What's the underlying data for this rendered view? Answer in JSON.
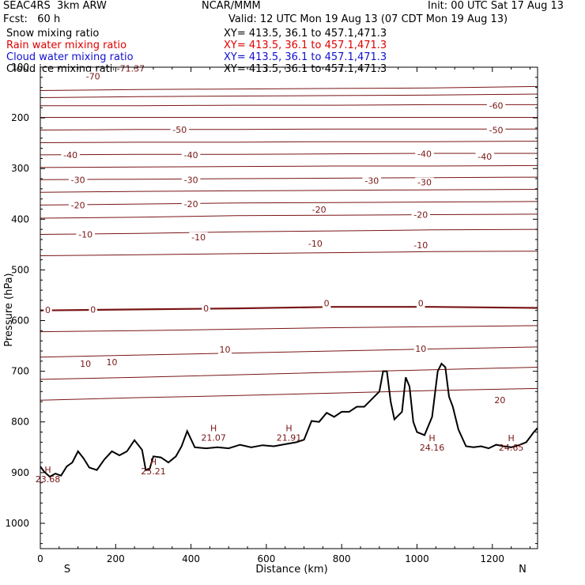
{
  "header": {
    "line1_left": "SEAC4RS  3km ARW",
    "line1_center": "NCAR/MMM",
    "line1_right": "Init: 00 UTC Sat 17 Aug 13",
    "line2_left": "Fcst:   60 h",
    "line2_right": "Valid: 12 UTC Mon 19 Aug 13 (07 CDT Mon 19 Aug 13)",
    "fields": [
      {
        "name": "Snow mixing ratio",
        "xy": "XY= 413.5, 36.1 to 457.1,471.3",
        "color": "#000000"
      },
      {
        "name": "Rain water mixing ratio",
        "xy": "XY= 413.5, 36.1 to 457.1,471.3",
        "color": "#e00000"
      },
      {
        "name": "Cloud water mixing ratio",
        "xy": "XY= 413.5, 36.1 to 457.1,471.3",
        "color": "#1010d0"
      },
      {
        "name": "Cloud ice mixing ratio",
        "xy": "XY= 413.5, 36.1 to 457.1,471.3",
        "color": "#000000"
      }
    ]
  },
  "chart_data": {
    "type": "line",
    "xlabel": "Distance (km)",
    "ylabel": "Pressure (hPa)",
    "xlim": [
      0,
      1320
    ],
    "ylim": [
      1050,
      100
    ],
    "xticks": [
      0,
      200,
      400,
      600,
      800,
      1000,
      1200
    ],
    "yticks": [
      100,
      200,
      300,
      400,
      500,
      600,
      700,
      800,
      900,
      1000
    ],
    "x_end_labels": {
      "left": "S",
      "right": "N"
    },
    "contour_color": "#7a1515",
    "contour_interval_c": 5,
    "isotherms": [
      {
        "t": -70,
        "p": [
          146,
          144,
          143,
          142,
          141,
          138
        ]
      },
      {
        "t": -65,
        "p": [
          160,
          158,
          157,
          156,
          155,
          153
        ]
      },
      {
        "t": -60,
        "p": [
          176,
          176,
          175,
          175,
          174,
          174
        ]
      },
      {
        "t": -55,
        "p": [
          199,
          199,
          199,
          199,
          199,
          199
        ]
      },
      {
        "t": -50,
        "p": [
          224,
          223,
          223,
          222,
          222,
          222
        ]
      },
      {
        "t": -45,
        "p": [
          249,
          248,
          248,
          247,
          247,
          246
        ]
      },
      {
        "t": -40,
        "p": [
          273,
          272,
          272,
          271,
          270,
          270
        ]
      },
      {
        "t": -35,
        "p": [
          298,
          297,
          296,
          295,
          295,
          294
        ]
      },
      {
        "t": -30,
        "p": [
          322,
          321,
          320,
          319,
          318,
          317
        ]
      },
      {
        "t": -25,
        "p": [
          347,
          345,
          344,
          343,
          342,
          341
        ]
      },
      {
        "t": -20,
        "p": [
          372,
          370,
          368,
          367,
          366,
          365
        ]
      },
      {
        "t": -15,
        "p": [
          398,
          396,
          393,
          392,
          391,
          390
        ]
      },
      {
        "t": -10,
        "p": [
          430,
          428,
          425,
          423,
          421,
          420
        ]
      },
      {
        "t": -5,
        "p": [
          472,
          470,
          468,
          466,
          464,
          463
        ]
      },
      {
        "t": 0,
        "p": [
          580,
          578,
          576,
          573,
          573,
          575
        ]
      },
      {
        "t": 5,
        "p": [
          622,
          620,
          617,
          614,
          612,
          610
        ]
      },
      {
        "t": 10,
        "p": [
          672,
          668,
          664,
          660,
          656,
          652
        ]
      },
      {
        "t": 15,
        "p": [
          716,
          712,
          707,
          702,
          697,
          692
        ]
      },
      {
        "t": 20,
        "p": [
          757,
          752,
          748,
          743,
          738,
          734
        ]
      }
    ],
    "contour_x": [
      0,
      260,
      520,
      780,
      1040,
      1320
    ],
    "contour_labels": [
      {
        "text": "-71.37",
        "x": 240,
        "p": 102
      },
      {
        "text": "-70",
        "x": 140,
        "p": 118
      },
      {
        "text": "-60",
        "x": 1210,
        "p": 176
      },
      {
        "text": "-50",
        "x": 370,
        "p": 223
      },
      {
        "text": "-50",
        "x": 1210,
        "p": 224
      },
      {
        "text": "-40",
        "x": 80,
        "p": 273
      },
      {
        "text": "-40",
        "x": 400,
        "p": 273
      },
      {
        "text": "-40",
        "x": 1020,
        "p": 271
      },
      {
        "text": "-40",
        "x": 1180,
        "p": 276
      },
      {
        "text": "-30",
        "x": 100,
        "p": 322
      },
      {
        "text": "-30",
        "x": 400,
        "p": 322
      },
      {
        "text": "-30",
        "x": 880,
        "p": 324
      },
      {
        "text": "-30",
        "x": 1020,
        "p": 327
      },
      {
        "text": "-20",
        "x": 100,
        "p": 372
      },
      {
        "text": "-20",
        "x": 400,
        "p": 370
      },
      {
        "text": "-20",
        "x": 740,
        "p": 381
      },
      {
        "text": "-20",
        "x": 1010,
        "p": 391
      },
      {
        "text": "-10",
        "x": 120,
        "p": 430
      },
      {
        "text": "-10",
        "x": 420,
        "p": 435
      },
      {
        "text": "-10",
        "x": 730,
        "p": 448
      },
      {
        "text": "-10",
        "x": 1010,
        "p": 451
      },
      {
        "text": "0",
        "x": 20,
        "p": 579
      },
      {
        "text": "0",
        "x": 140,
        "p": 578
      },
      {
        "text": "0",
        "x": 440,
        "p": 576
      },
      {
        "text": "0",
        "x": 760,
        "p": 566
      },
      {
        "text": "0",
        "x": 1010,
        "p": 566
      },
      {
        "text": "10",
        "x": 120,
        "p": 685
      },
      {
        "text": "10",
        "x": 190,
        "p": 682
      },
      {
        "text": "10",
        "x": 490,
        "p": 657
      },
      {
        "text": "10",
        "x": 1010,
        "p": 655
      },
      {
        "text": "20",
        "x": 1220,
        "p": 757
      }
    ],
    "surface_pressure": {
      "x": [
        0,
        10,
        25,
        40,
        55,
        70,
        85,
        100,
        115,
        130,
        150,
        170,
        190,
        210,
        230,
        250,
        270,
        280,
        290,
        300,
        320,
        340,
        360,
        375,
        390,
        410,
        440,
        470,
        500,
        530,
        560,
        590,
        620,
        650,
        680,
        700,
        720,
        740,
        760,
        780,
        800,
        820,
        840,
        860,
        880,
        900,
        910,
        920,
        930,
        940,
        960,
        970,
        980,
        990,
        1000,
        1020,
        1040,
        1055,
        1065,
        1075,
        1085,
        1095,
        1110,
        1130,
        1150,
        1170,
        1190,
        1210,
        1230,
        1250,
        1270,
        1290,
        1300,
        1310,
        1320
      ],
      "p": [
        888,
        898,
        908,
        902,
        906,
        888,
        880,
        858,
        872,
        890,
        895,
        874,
        858,
        866,
        858,
        836,
        855,
        895,
        893,
        868,
        870,
        880,
        868,
        848,
        818,
        850,
        852,
        850,
        852,
        845,
        850,
        846,
        848,
        844,
        840,
        835,
        798,
        800,
        782,
        790,
        780,
        780,
        770,
        770,
        755,
        740,
        700,
        700,
        760,
        795,
        780,
        712,
        730,
        800,
        820,
        826,
        790,
        700,
        685,
        692,
        750,
        770,
        815,
        848,
        850,
        848,
        852,
        845,
        848,
        850,
        846,
        840,
        830,
        820,
        812
      ]
    },
    "highs": [
      {
        "label": "H",
        "value": "23.68",
        "x": 20,
        "p": 900
      },
      {
        "label": "H",
        "value": "25.21",
        "x": 300,
        "p": 885
      },
      {
        "label": "H",
        "value": "21.07",
        "x": 460,
        "p": 818
      },
      {
        "label": "H",
        "value": "21.91",
        "x": 660,
        "p": 818
      },
      {
        "label": "H",
        "value": "24.16",
        "x": 1040,
        "p": 838
      },
      {
        "label": "H",
        "value": "24.65",
        "x": 1250,
        "p": 838
      }
    ]
  }
}
